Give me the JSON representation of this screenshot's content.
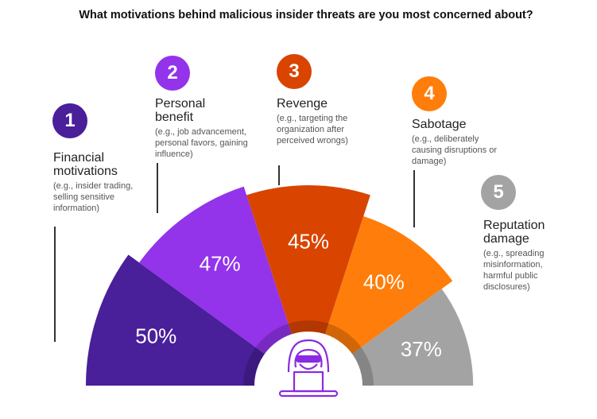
{
  "chart_data": {
    "type": "pie",
    "title": "What motivations behind malicious insider threats are you most concerned about?",
    "categories": [
      {
        "rank": "1",
        "label": "Financial motivations",
        "example": "(e.g., insider trading, selling sensitive information)",
        "value": 50,
        "display": "50%",
        "color": "#4a1f9a"
      },
      {
        "rank": "2",
        "label": "Personal benefit",
        "example": "(e.g., job advancement, personal favors, gaining influence)",
        "value": 47,
        "display": "47%",
        "color": "#9333ea"
      },
      {
        "rank": "3",
        "label": "Revenge",
        "example": "(e.g., targeting the organization after perceived wrongs)",
        "value": 45,
        "display": "45%",
        "color": "#d94400"
      },
      {
        "rank": "4",
        "label": "Sabotage",
        "example": "(e.g., deliberately causing disruptions or damage)",
        "value": 40,
        "display": "40%",
        "color": "#ff7d0a"
      },
      {
        "rank": "5",
        "label": "Reputation damage",
        "example": "(e.g., spreading misinformation, harmful public disclosures)",
        "value": 37,
        "display": "37%",
        "color": "#a3a3a3"
      }
    ],
    "center_icon": "hooded-hacker-laptop-icon"
  }
}
